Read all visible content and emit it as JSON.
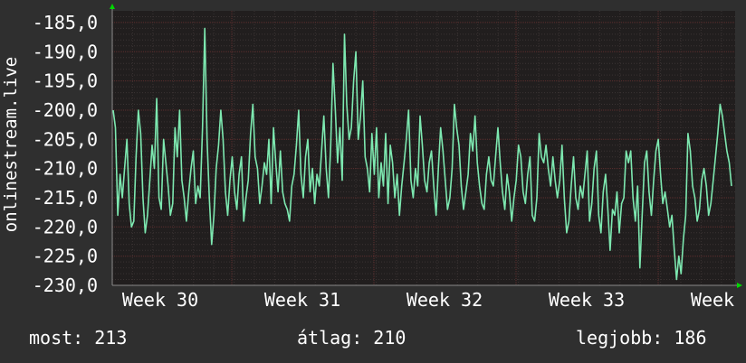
{
  "chart_data": {
    "type": "line",
    "ylabel": "onlinestream.live",
    "ylim": [
      -230,
      -183
    ],
    "y_ticks": [
      "-185,0",
      "-190,0",
      "-195,0",
      "-200,0",
      "-205,0",
      "-210,0",
      "-215,0",
      "-220,0",
      "-225,0",
      "-230,0"
    ],
    "x_ticks": [
      "Week 30",
      "Week 31",
      "Week 32",
      "Week 33",
      "Week"
    ],
    "series": [
      {
        "values": [
          -200,
          -203,
          -218,
          -211,
          -215,
          -210,
          -205,
          -216,
          -220,
          -219,
          -208,
          -200,
          -204,
          -215,
          -221,
          -218,
          -212,
          -206,
          -210,
          -198,
          -215,
          -217,
          -205,
          -209,
          -213,
          -218,
          -216,
          -203,
          -208,
          -200,
          -212,
          -215,
          -219,
          -214,
          -210,
          -207,
          -216,
          -213,
          -215,
          -203,
          -186,
          -205,
          -215,
          -223,
          -218,
          -210,
          -206,
          -200,
          -205,
          -214,
          -218,
          -212,
          -208,
          -214,
          -217,
          -211,
          -208,
          -219,
          -215,
          -212,
          -204,
          -199,
          -208,
          -210,
          -216,
          -213,
          -209,
          -211,
          -205,
          -216,
          -203,
          -209,
          -214,
          -207,
          -214,
          -216,
          -217,
          -219,
          -213,
          -211,
          -206,
          -200,
          -211,
          -215,
          -208,
          -205,
          -214,
          -210,
          -216,
          -211,
          -213,
          -207,
          -201,
          -210,
          -215,
          -206,
          -192,
          -200,
          -209,
          -203,
          -212,
          -187,
          -199,
          -205,
          -203,
          -195,
          -190,
          -205,
          -201,
          -195,
          -208,
          -210,
          -214,
          -204,
          -211,
          -203,
          -215,
          -209,
          -213,
          -204,
          -216,
          -206,
          -209,
          -215,
          -211,
          -218,
          -213,
          -209,
          -205,
          -200,
          -212,
          -215,
          -210,
          -213,
          -201,
          -206,
          -212,
          -214,
          -209,
          -207,
          -213,
          -218,
          -210,
          -203,
          -207,
          -212,
          -217,
          -215,
          -210,
          -199,
          -203,
          -206,
          -213,
          -217,
          -214,
          -211,
          -204,
          -207,
          -201,
          -209,
          -213,
          -216,
          -217,
          -211,
          -208,
          -212,
          -213,
          -208,
          -203,
          -209,
          -214,
          -217,
          -211,
          -214,
          -219,
          -215,
          -212,
          -206,
          -208,
          -214,
          -216,
          -211,
          -208,
          -218,
          -219,
          -215,
          -204,
          -208,
          -209,
          -206,
          -210,
          -213,
          -208,
          -212,
          -215,
          -212,
          -206,
          -215,
          -221,
          -219,
          -213,
          -208,
          -215,
          -217,
          -213,
          -215,
          -211,
          -207,
          -219,
          -216,
          -210,
          -207,
          -218,
          -221,
          -214,
          -211,
          -217,
          -224,
          -217,
          -218,
          -214,
          -221,
          -216,
          -215,
          -207,
          -209,
          -207,
          -215,
          -219,
          -213,
          -227,
          -218,
          -209,
          -207,
          -214,
          -218,
          -212,
          -207,
          -205,
          -211,
          -216,
          -214,
          -217,
          -220,
          -218,
          -224,
          -229,
          -225,
          -228,
          -222,
          -218,
          -204,
          -207,
          -213,
          -215,
          -219,
          -217,
          -212,
          -210,
          -213,
          -218,
          -216,
          -212,
          -208,
          -204,
          -199,
          -201,
          -204,
          -207,
          -209,
          -213
        ]
      }
    ]
  },
  "stats": {
    "now": "most: 213",
    "avg": "átlag: 210",
    "best": "legjobb: 186"
  },
  "colors": {
    "background": "#2f2f2f",
    "plot": "#211e1e",
    "line": "#7de8b0",
    "grid_major": "#5c2e2e",
    "grid_minor": "#3a3333",
    "arrow": "#00d800"
  }
}
